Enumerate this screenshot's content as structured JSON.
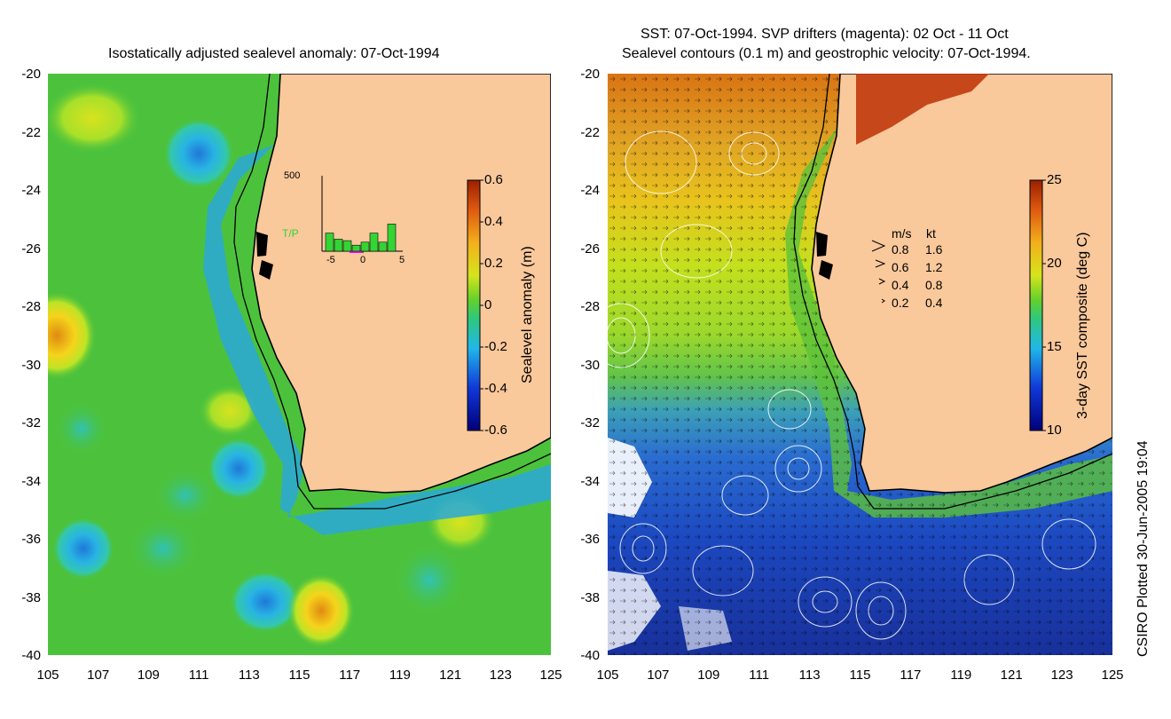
{
  "left_panel": {
    "title": "Isostatically adjusted sealevel anomaly: 07-Oct-1994",
    "y_ticks": [
      "-20",
      "-22",
      "-24",
      "-26",
      "-28",
      "-30",
      "-32",
      "-34",
      "-36",
      "-38",
      "-40"
    ],
    "x_ticks": [
      "105",
      "107",
      "109",
      "111",
      "113",
      "115",
      "117",
      "119",
      "121",
      "123",
      "125"
    ],
    "colorbar": {
      "label": "Sealevel anomaly (m)",
      "ticks": [
        "0.6",
        "0.4",
        "0.2",
        "0",
        "-0.2",
        "-0.4",
        "-0.6"
      ],
      "range": [
        -0.6,
        0.6
      ]
    },
    "inset": {
      "y_max_label": "500",
      "satellite_label": "T/P",
      "x_labels": [
        "-5",
        "0",
        "5"
      ],
      "bar_values": [
        120,
        80,
        70,
        40,
        60,
        120,
        60,
        180
      ]
    }
  },
  "right_panel": {
    "title_line1": "SST: 07-Oct-1994. SVP drifters (magenta): 02 Oct - 11 Oct",
    "title_line2": "Sealevel contours (0.1 m) and geostrophic velocity: 07-Oct-1994.",
    "y_ticks": [
      "-20",
      "-22",
      "-24",
      "-26",
      "-28",
      "-30",
      "-32",
      "-34",
      "-36",
      "-38",
      "-40"
    ],
    "x_ticks": [
      "105",
      "107",
      "109",
      "111",
      "113",
      "115",
      "117",
      "119",
      "121",
      "123",
      "125"
    ],
    "colorbar": {
      "label": "3-day SST composite (deg C)",
      "ticks": [
        "25",
        "20",
        "15",
        "10"
      ],
      "range": [
        10,
        25
      ]
    },
    "velocity_legend": {
      "header_ms": "m/s",
      "header_kt": "kt",
      "rows": [
        {
          "ms": "0.8",
          "kt": "1.6"
        },
        {
          "ms": "0.6",
          "kt": "1.2"
        },
        {
          "ms": "0.4",
          "kt": "0.8"
        },
        {
          "ms": "0.2",
          "kt": "0.4"
        }
      ]
    }
  },
  "footer": {
    "credit": "CSIRO Plotted 30-Jun-2005 19:04"
  },
  "colors": {
    "land": "#f9c89b",
    "ocean_green": "#4cc23c",
    "coast": "#000000"
  }
}
